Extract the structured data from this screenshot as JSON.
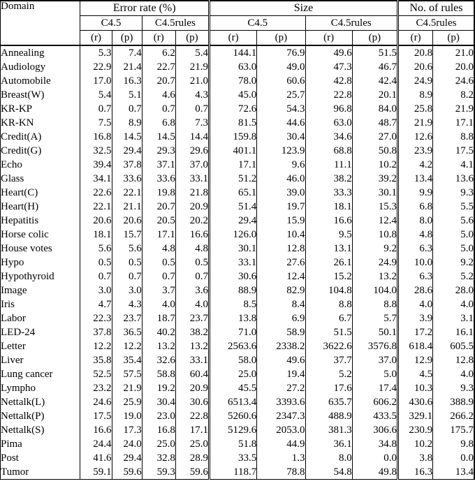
{
  "table": {
    "domain_header": "Domain",
    "rp": [
      "(r)",
      "(p)"
    ],
    "groups": [
      {
        "label": "Error rate (%)",
        "subs": [
          "C4.5",
          "C4.5rules"
        ]
      },
      {
        "label": "Size",
        "subs": [
          "C4.5",
          "C4.5rules"
        ]
      },
      {
        "label": "No. of rules",
        "subs": [
          "C4.5rules"
        ]
      }
    ],
    "rows": [
      {
        "domain": "Annealing",
        "values": [
          "5.3",
          "7.4",
          "6.2",
          "5.4",
          "144.1",
          "76.9",
          "49.6",
          "51.5",
          "20.8",
          "21.0"
        ],
        "bold": []
      },
      {
        "domain": "Audiology",
        "values": [
          "22.9",
          "21.4",
          "22.7",
          "21.9",
          "63.0",
          "49.0",
          "47.3",
          "46.7",
          "20.6",
          "20.0"
        ],
        "bold": [
          9
        ]
      },
      {
        "domain": "Automobile",
        "values": [
          "17.0",
          "16.3",
          "20.7",
          "21.0",
          "78.0",
          "60.6",
          "42.8",
          "42.4",
          "24.9",
          "24.6"
        ],
        "bold": []
      },
      {
        "domain": "Breast(W)",
        "values": [
          "5.4",
          "5.1",
          "4.6",
          "4.3",
          "45.0",
          "25.7",
          "22.8",
          "20.1",
          "8.9",
          "8.2"
        ],
        "bold": [
          7,
          9
        ]
      },
      {
        "domain": "KR-KP",
        "values": [
          "0.7",
          "0.7",
          "0.7",
          "0.7",
          "72.6",
          "54.3",
          "96.8",
          "84.0",
          "25.8",
          "21.9"
        ],
        "bold": [
          7,
          9
        ]
      },
      {
        "domain": "KR-KN",
        "values": [
          "7.5",
          "8.9",
          "6.8",
          "7.3",
          "81.5",
          "44.6",
          "63.0",
          "48.7",
          "21.9",
          "17.1"
        ],
        "bold": [
          7,
          9
        ]
      },
      {
        "domain": "Credit(A)",
        "values": [
          "16.8",
          "14.5",
          "14.5",
          "14.4",
          "159.8",
          "30.4",
          "34.6",
          "27.0",
          "12.6",
          "8.8"
        ],
        "bold": [
          7,
          9
        ]
      },
      {
        "domain": "Credit(G)",
        "values": [
          "32.5",
          "29.4",
          "29.3",
          "29.6",
          "401.1",
          "123.9",
          "68.8",
          "50.8",
          "23.9",
          "17.5"
        ],
        "bold": [
          7,
          9
        ]
      },
      {
        "domain": "Echo",
        "values": [
          "39.4",
          "37.8",
          "37.1",
          "37.0",
          "17.1",
          "9.6",
          "11.1",
          "10.2",
          "4.2",
          "4.1"
        ],
        "bold": []
      },
      {
        "domain": "Glass",
        "values": [
          "34.1",
          "33.6",
          "33.6",
          "33.1",
          "51.2",
          "46.0",
          "38.2",
          "39.2",
          "13.4",
          "13.6"
        ],
        "bold": []
      },
      {
        "domain": "Heart(C)",
        "values": [
          "22.6",
          "22.1",
          "19.8",
          "21.8",
          "65.1",
          "39.0",
          "33.3",
          "30.1",
          "9.9",
          "9.3"
        ],
        "bold": [
          7
        ]
      },
      {
        "domain": "Heart(H)",
        "values": [
          "22.1",
          "21.1",
          "20.7",
          "20.9",
          "51.4",
          "19.7",
          "18.1",
          "15.3",
          "6.8",
          "5.5"
        ],
        "bold": [
          7,
          9
        ]
      },
      {
        "domain": "Hepatitis",
        "values": [
          "20.6",
          "20.6",
          "20.5",
          "20.2",
          "29.4",
          "15.9",
          "16.6",
          "12.4",
          "8.0",
          "5.6"
        ],
        "bold": [
          7,
          9
        ]
      },
      {
        "domain": "Horse colic",
        "values": [
          "18.1",
          "15.7",
          "17.1",
          "16.6",
          "126.0",
          "10.4",
          "9.5",
          "10.8",
          "4.8",
          "5.0"
        ],
        "bold": []
      },
      {
        "domain": "House votes",
        "values": [
          "5.6",
          "5.6",
          "4.8",
          "4.8",
          "30.1",
          "12.8",
          "13.1",
          "9.2",
          "6.3",
          "5.0"
        ],
        "bold": [
          7,
          9
        ]
      },
      {
        "domain": "Hypo",
        "values": [
          "0.5",
          "0.5",
          "0.5",
          "0.5",
          "33.1",
          "27.6",
          "26.1",
          "24.9",
          "10.0",
          "9.2"
        ],
        "bold": [
          7,
          9
        ]
      },
      {
        "domain": "Hypothyroid",
        "values": [
          "0.7",
          "0.7",
          "0.7",
          "0.7",
          "30.6",
          "12.4",
          "15.2",
          "13.2",
          "6.3",
          "5.2"
        ],
        "bold": [
          9
        ]
      },
      {
        "domain": "Image",
        "values": [
          "3.0",
          "3.0",
          "3.7",
          "3.6",
          "88.9",
          "82.9",
          "104.8",
          "104.0",
          "28.6",
          "28.0"
        ],
        "bold": [
          9
        ]
      },
      {
        "domain": "Iris",
        "values": [
          "4.7",
          "4.3",
          "4.0",
          "4.0",
          "8.5",
          "8.4",
          "8.8",
          "8.8",
          "4.0",
          "4.0"
        ],
        "bold": []
      },
      {
        "domain": "Labor",
        "values": [
          "22.3",
          "23.7",
          "18.7",
          "23.7",
          "13.8",
          "6.9",
          "6.7",
          "5.7",
          "3.9",
          "3.1"
        ],
        "bold": [
          9
        ]
      },
      {
        "domain": "LED-24",
        "values": [
          "37.8",
          "36.5",
          "40.2",
          "38.2",
          "71.0",
          "58.9",
          "51.5",
          "50.1",
          "17.2",
          "16.1"
        ],
        "bold": [
          3,
          9
        ]
      },
      {
        "domain": "Letter",
        "values": [
          "12.2",
          "12.2",
          "13.2",
          "13.2",
          "2563.6",
          "2338.2",
          "3622.6",
          "3576.8",
          "618.4",
          "605.5"
        ],
        "bold": [
          7,
          9
        ]
      },
      {
        "domain": "Liver",
        "values": [
          "35.8",
          "35.4",
          "32.6",
          "33.1",
          "58.0",
          "49.6",
          "37.7",
          "37.0",
          "12.9",
          "12.8"
        ],
        "bold": []
      },
      {
        "domain": "Lung cancer",
        "values": [
          "52.5",
          "57.5",
          "58.8",
          "60.4",
          "25.0",
          "19.4",
          "5.2",
          "5.0",
          "4.5",
          "4.0"
        ],
        "bold": [
          9
        ]
      },
      {
        "domain": "Lympho",
        "values": [
          "23.2",
          "21.9",
          "19.2",
          "20.9",
          "45.5",
          "27.2",
          "17.6",
          "17.4",
          "10.3",
          "9.3"
        ],
        "bold": [
          9
        ]
      },
      {
        "domain": "Nettalk(L)",
        "values": [
          "24.6",
          "25.9",
          "30.4",
          "30.6",
          "6513.4",
          "3393.6",
          "635.7",
          "606.2",
          "430.6",
          "388.9"
        ],
        "bold": [
          7,
          9
        ]
      },
      {
        "domain": "Nettalk(P)",
        "values": [
          "17.5",
          "19.0",
          "23.0",
          "22.8",
          "5260.6",
          "2347.3",
          "488.9",
          "433.5",
          "329.1",
          "266.2"
        ],
        "bold": [
          7,
          9
        ]
      },
      {
        "domain": "Nettalk(S)",
        "values": [
          "16.6",
          "17.3",
          "16.8",
          "17.1",
          "5129.6",
          "2053.0",
          "381.3",
          "306.6",
          "230.9",
          "175.7"
        ],
        "bold": [
          7,
          9
        ]
      },
      {
        "domain": "Pima",
        "values": [
          "24.4",
          "24.0",
          "25.0",
          "25.0",
          "51.8",
          "44.9",
          "36.1",
          "34.8",
          "10.2",
          "9.8"
        ],
        "bold": [
          7
        ]
      },
      {
        "domain": "Post",
        "values": [
          "41.6",
          "29.4",
          "32.8",
          "28.9",
          "33.5",
          "1.3",
          "8.0",
          "0.0",
          "3.8",
          "0.0"
        ],
        "bold": [
          7,
          9
        ]
      },
      {
        "domain": "Tumor",
        "values": [
          "59.1",
          "59.6",
          "59.3",
          "59.6",
          "118.7",
          "78.8",
          "54.8",
          "49.8",
          "16.3",
          "13.4"
        ],
        "bold": [
          7,
          9
        ]
      }
    ]
  }
}
